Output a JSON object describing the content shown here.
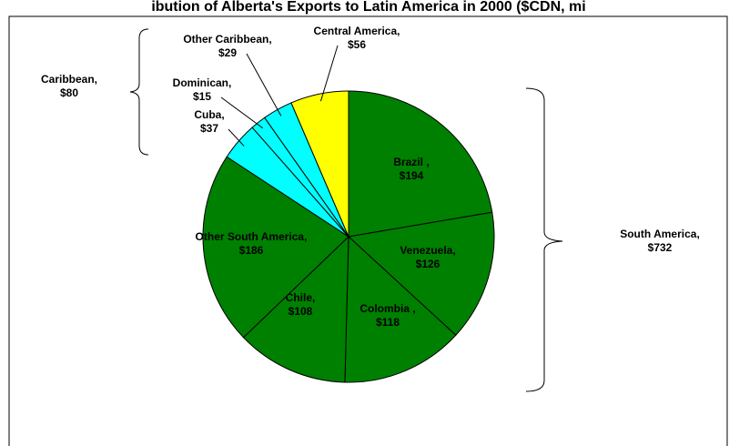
{
  "chart_data": {
    "type": "pie",
    "title": "ibution of Alberta's Exports to Latin America in 2000 ($CDN, mi",
    "categories": [
      "Brazil ,",
      "Venezuela,",
      "Colombia ,",
      "Chile,",
      "Other South America,",
      "Cuba,",
      "Dominican,",
      "Other Caribbean,",
      "Central America,"
    ],
    "values": [
      194,
      126,
      118,
      108,
      186,
      37,
      15,
      29,
      56
    ],
    "value_labels": [
      "$194",
      "$126",
      "$118",
      "$108",
      "$186",
      "$37",
      "$15",
      "$29",
      "$56"
    ],
    "colors": [
      "#008000",
      "#008000",
      "#008000",
      "#008000",
      "#008000",
      "#00ffff",
      "#00ffff",
      "#00ffff",
      "#ffff00"
    ],
    "annotations": [
      {
        "text": "Caribbean,",
        "value": 80,
        "value_label": "$80"
      },
      {
        "text": "South America,",
        "value": 732,
        "value_label": "$732"
      }
    ]
  }
}
